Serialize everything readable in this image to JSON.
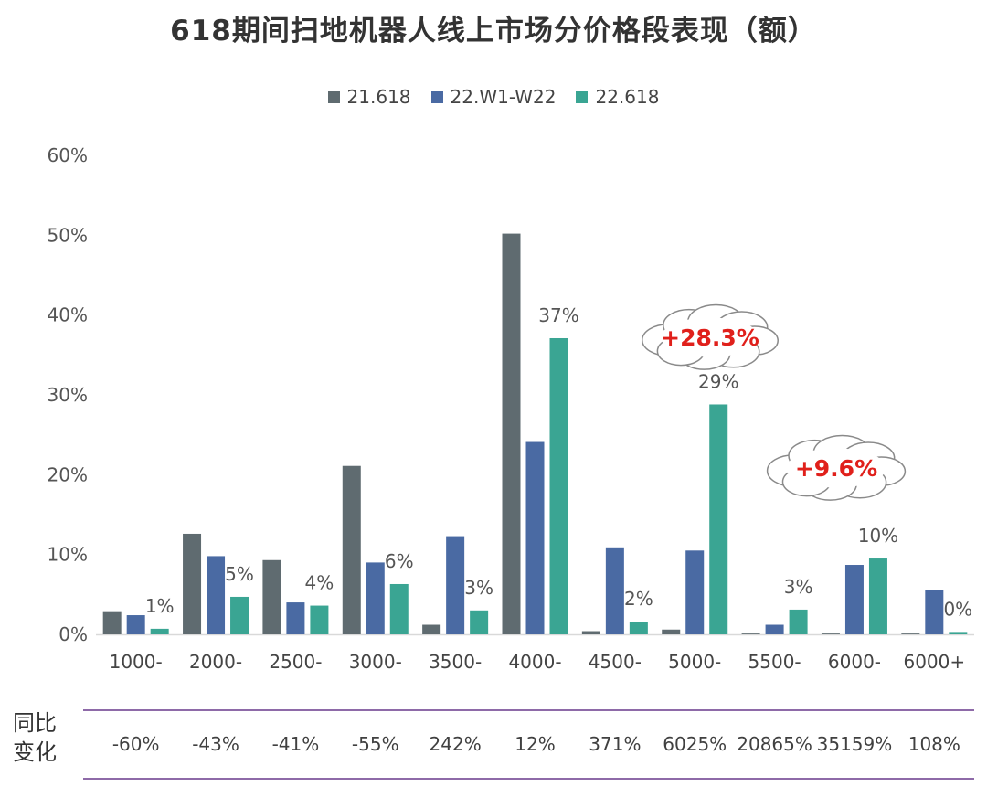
{
  "chart_data": {
    "type": "bar",
    "title": "618期间扫地机器人线上市场分价格段表现（额）",
    "categories": [
      "1000-",
      "2000-",
      "2500-",
      "3000-",
      "3500-",
      "4000-",
      "4500-",
      "5000-",
      "5500-",
      "6000-",
      "6000+"
    ],
    "series": [
      {
        "name": "21.618",
        "color": "#5f6b70",
        "values": [
          2.9,
          12.6,
          9.3,
          21.1,
          1.2,
          50.2,
          0.4,
          0.6,
          0.1,
          0.1,
          0.1
        ]
      },
      {
        "name": "22.W1-W22",
        "color": "#4a6aa3",
        "values": [
          2.4,
          9.8,
          4.0,
          9.0,
          12.3,
          24.1,
          10.9,
          10.5,
          1.2,
          8.7,
          5.6
        ]
      },
      {
        "name": "22.618",
        "color": "#3aa593",
        "values": [
          0.7,
          4.7,
          3.6,
          6.3,
          3.0,
          37.1,
          1.6,
          28.8,
          3.1,
          9.5,
          0.3
        ]
      }
    ],
    "data_labels": [
      "1%",
      "5%",
      "4%",
      "6%",
      "3%",
      "37%",
      "2%",
      "29%",
      "3%",
      "10%",
      "0%"
    ],
    "ylim": [
      0,
      60
    ],
    "yticks": [
      "0%",
      "10%",
      "20%",
      "30%",
      "40%",
      "50%",
      "60%"
    ],
    "xlabel": "",
    "ylabel": "",
    "annotations": [
      "+28.3%",
      "+9.6%"
    ]
  },
  "yoy": {
    "label_line1": "同比",
    "label_line2": "变化",
    "values": [
      "-60%",
      "-43%",
      "-41%",
      "-55%",
      "242%",
      "12%",
      "371%",
      "6025%",
      "20865%",
      "35159%",
      "108%"
    ]
  }
}
